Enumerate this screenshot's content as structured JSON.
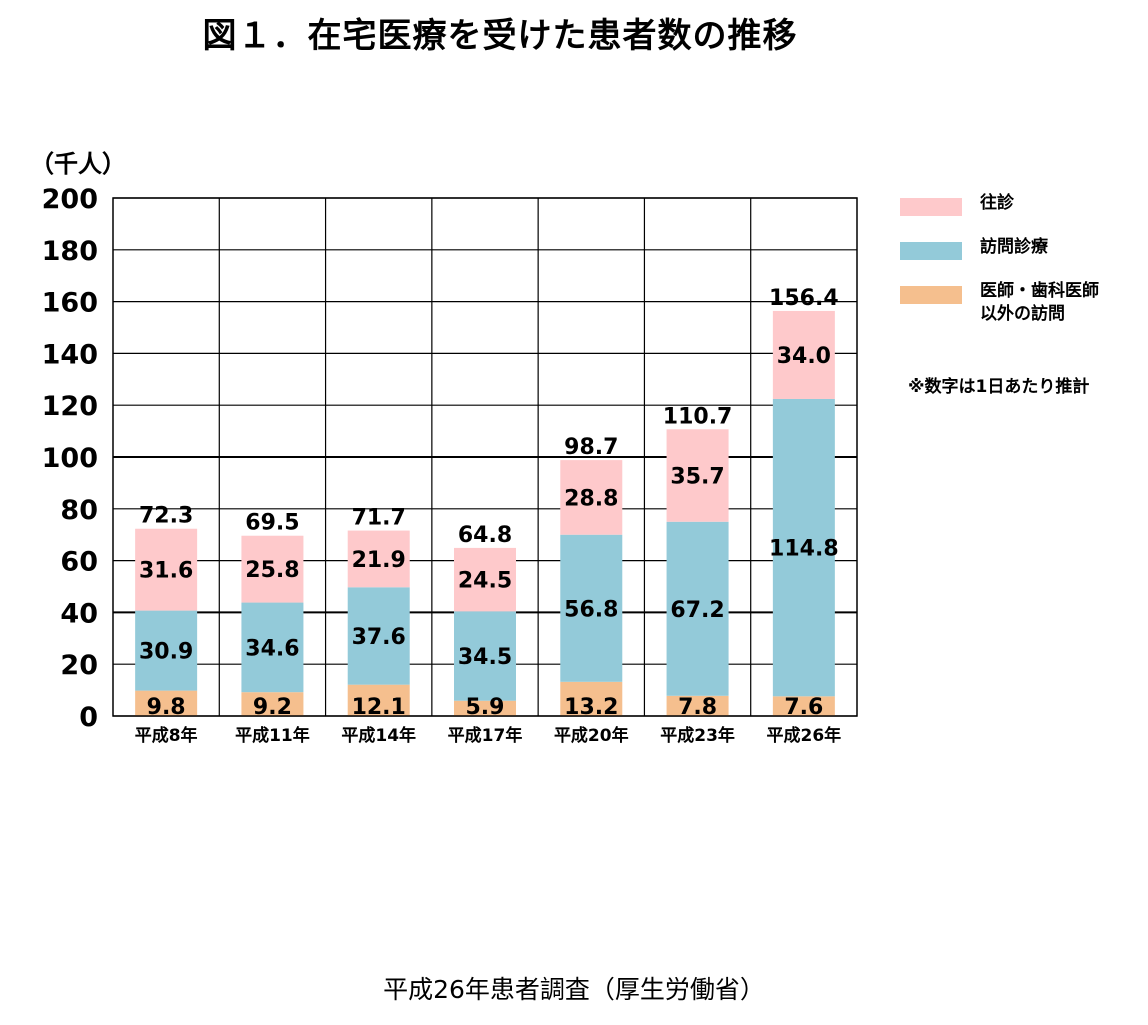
{
  "title": "図１．在宅医療を受けた患者数の推移",
  "unit_label": "（千人）",
  "note": "※数字は1日あたり推計",
  "source": "平成26年患者調査（厚生労働省）",
  "chart_data": {
    "type": "bar",
    "stacked": true,
    "categories": [
      "平成8年",
      "平成11年",
      "平成14年",
      "平成17年",
      "平成20年",
      "平成23年",
      "平成26年"
    ],
    "series": [
      {
        "name": "医師・歯科医師\n以外の訪問",
        "color": "#f5bf8e",
        "values": [
          9.8,
          9.2,
          12.1,
          5.9,
          13.2,
          7.8,
          7.6
        ]
      },
      {
        "name": "訪問診療",
        "color": "#93cad9",
        "values": [
          30.9,
          34.6,
          37.6,
          34.5,
          56.8,
          67.2,
          114.8
        ]
      },
      {
        "name": "往診",
        "color": "#fec9cb",
        "values": [
          31.6,
          25.8,
          21.9,
          24.5,
          28.8,
          35.7,
          34.0
        ]
      }
    ],
    "totals": [
      72.3,
      69.5,
      71.7,
      64.8,
      98.7,
      110.7,
      156.4
    ],
    "yticks": [
      0,
      20,
      40,
      60,
      80,
      100,
      120,
      140,
      160,
      180,
      200
    ],
    "ylim": [
      0,
      200
    ],
    "grid": true,
    "legend": "right"
  }
}
